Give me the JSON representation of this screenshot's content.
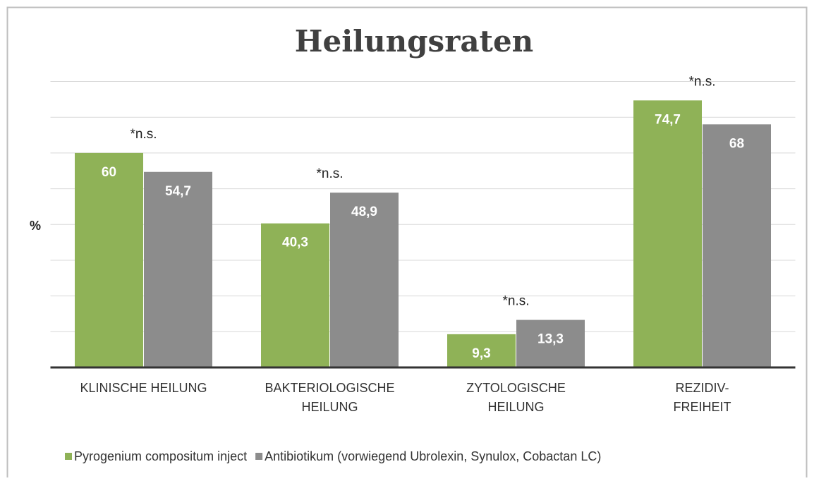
{
  "chart_data": {
    "type": "bar",
    "title": "Heilungsraten",
    "y_label": "%",
    "categories": [
      "KLINISCHE HEILUNG",
      "BAKTERIOLOGISCHE\nHEILUNG",
      "ZYTOLOGISCHE\nHEILUNG",
      "REZIDIV-\nFREIHEIT"
    ],
    "series": [
      {
        "name": "Pyrogenium compositum inject",
        "color": "#8fb257",
        "values": [
          60,
          40.3,
          9.3,
          74.7
        ],
        "value_labels": [
          "60",
          "40,3",
          "9,3",
          "74,7"
        ]
      },
      {
        "name": "Antibiotikum (vorwiegend Ubrolexin, Synulox, Cobactan LC)",
        "color": "#8c8c8c",
        "values": [
          54.7,
          48.9,
          13.3,
          68
        ],
        "value_labels": [
          "54,7",
          "48,9",
          "13,3",
          "68"
        ]
      }
    ],
    "annotations": [
      {
        "text": "*n.s.",
        "category": 0
      },
      {
        "text": "*n.s.",
        "category": 1
      },
      {
        "text": "*n.s.",
        "category": 2
      },
      {
        "text": "*n.s.",
        "category": 3
      }
    ],
    "ylim": [
      0,
      80
    ],
    "yticks": [
      0,
      10,
      20,
      30,
      40,
      50,
      60,
      70,
      80
    ],
    "ytick_labels": false,
    "grid": true,
    "legend": "bottom"
  }
}
